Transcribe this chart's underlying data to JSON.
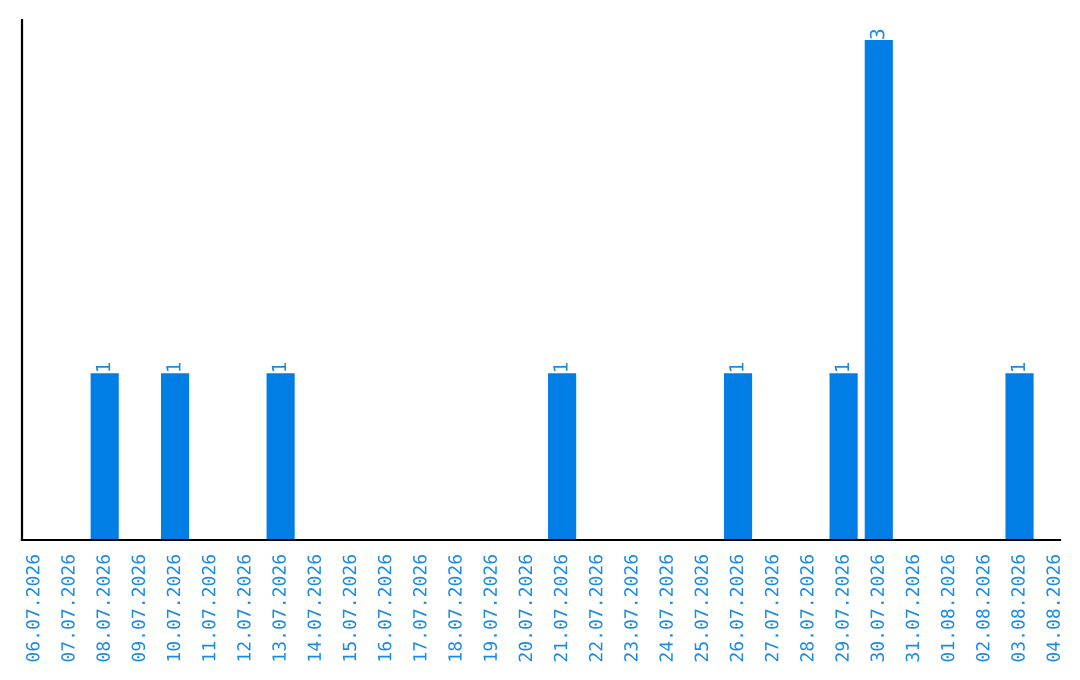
{
  "chart_data": {
    "type": "bar",
    "categories": [
      "06.07.2026",
      "07.07.2026",
      "08.07.2026",
      "09.07.2026",
      "10.07.2026",
      "11.07.2026",
      "12.07.2026",
      "13.07.2026",
      "14.07.2026",
      "15.07.2026",
      "16.07.2026",
      "17.07.2026",
      "18.07.2026",
      "19.07.2026",
      "20.07.2026",
      "21.07.2026",
      "22.07.2026",
      "23.07.2026",
      "24.07.2026",
      "25.07.2026",
      "26.07.2026",
      "27.07.2026",
      "28.07.2026",
      "29.07.2026",
      "30.07.2026",
      "31.07.2026",
      "01.08.2026",
      "02.08.2026",
      "03.08.2026",
      "04.08.2026"
    ],
    "values": [
      0,
      0,
      1,
      0,
      1,
      0,
      0,
      1,
      0,
      0,
      0,
      0,
      0,
      0,
      0,
      1,
      0,
      0,
      0,
      0,
      1,
      0,
      0,
      1,
      3,
      0,
      0,
      0,
      1,
      0
    ],
    "value_labels": [
      null,
      null,
      "1",
      null,
      "1",
      null,
      null,
      "1",
      null,
      null,
      null,
      null,
      null,
      null,
      null,
      "1",
      null,
      null,
      null,
      null,
      "1",
      null,
      null,
      "1",
      "3",
      null,
      null,
      null,
      "1",
      null
    ],
    "color": "#007ee5",
    "grid": false
  }
}
